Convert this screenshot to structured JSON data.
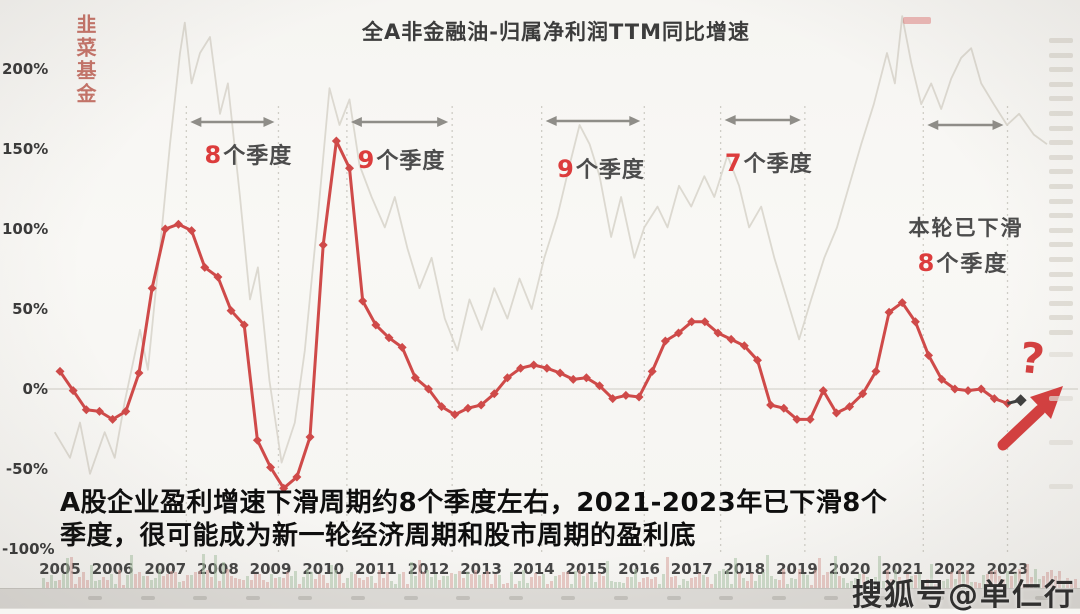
{
  "seal_text": "韭菜基金",
  "title": "全A非金融油-归属净利润TTM同比增速",
  "caption": {
    "line1": "A股企业盈利增速下滑周期约8个季度左右，2021-2023年已下滑8个",
    "line2": "季度，很可能成为新一轮经济周期和股市周期的盈利底"
  },
  "current_cycle_note": {
    "line1": "本轮已下滑",
    "num": "8",
    "rest": "个季度"
  },
  "question_mark": "?",
  "sohu_watermark": "搜狐号@单仁行",
  "colors": {
    "series_red": "#cf4a49",
    "series_gray": "#d8d5cc",
    "end_marker": "#3f3f3f",
    "annotation_red": "#dc3c3c",
    "arrow_gray": "#8f8d88",
    "bar_red": "#d8a49f",
    "bar_green": "#a9c2a6"
  },
  "chart_data": {
    "type": "line",
    "title": "全A非金融油-归属净利润TTM同比增速",
    "y_axis": {
      "unit": "%",
      "ticks": [
        200,
        150,
        100,
        50,
        0,
        -50,
        -100
      ],
      "range": [
        -110,
        240
      ],
      "grid": "0%-line only"
    },
    "x_axis": {
      "tick_years": [
        2005,
        2006,
        2007,
        2008,
        2009,
        2010,
        2011,
        2012,
        2013,
        2014,
        2015,
        2016,
        2017,
        2018,
        2019,
        2020,
        2021,
        2022,
        2023
      ]
    },
    "legend": "none",
    "series": [
      {
        "name": "归属净利润TTM同比增速(%)",
        "marker": "diamond",
        "color": "#cf4a49",
        "start_year": 2005.0,
        "interval_years": 0.25,
        "values": [
          11,
          -1,
          -13,
          -14,
          -19,
          -14,
          10,
          63,
          100,
          103,
          99,
          76,
          70,
          49,
          40,
          -32,
          -49,
          -62,
          -55,
          -30,
          90,
          155,
          138,
          55,
          40,
          32,
          26,
          7,
          0,
          -11,
          -16,
          -12,
          -10,
          -3,
          7,
          13,
          15,
          13,
          10,
          6,
          7,
          2,
          -6,
          -4,
          -5,
          11,
          30,
          35,
          42,
          42,
          35,
          31,
          27,
          18,
          -10,
          -12,
          -19,
          -19,
          -1,
          -15,
          -11,
          -3,
          11,
          48,
          54,
          42,
          21,
          6,
          0,
          -1,
          0,
          -6,
          -9
        ]
      },
      {
        "name": "背景淡灰曲线(指数走势)",
        "marker": "none",
        "color": "#d8d5cc",
        "points": [
          [
            2004.9,
            -27
          ],
          [
            2005.19,
            -43
          ],
          [
            2005.38,
            -21
          ],
          [
            2005.57,
            -53
          ],
          [
            2005.85,
            -27
          ],
          [
            2006.04,
            -43
          ],
          [
            2006.23,
            -8
          ],
          [
            2006.52,
            37
          ],
          [
            2006.67,
            12
          ],
          [
            2006.9,
            88
          ],
          [
            2007.09,
            153
          ],
          [
            2007.28,
            210
          ],
          [
            2007.37,
            229
          ],
          [
            2007.5,
            191
          ],
          [
            2007.66,
            210
          ],
          [
            2007.85,
            220
          ],
          [
            2008.04,
            172
          ],
          [
            2008.19,
            191
          ],
          [
            2008.42,
            120
          ],
          [
            2008.61,
            56
          ],
          [
            2008.76,
            76
          ],
          [
            2008.98,
            5
          ],
          [
            2009.21,
            -46
          ],
          [
            2009.46,
            -21
          ],
          [
            2009.65,
            24
          ],
          [
            2009.9,
            108
          ],
          [
            2010.12,
            188
          ],
          [
            2010.31,
            165
          ],
          [
            2010.5,
            181
          ],
          [
            2010.69,
            140
          ],
          [
            2010.92,
            120
          ],
          [
            2011.17,
            101
          ],
          [
            2011.36,
            120
          ],
          [
            2011.6,
            88
          ],
          [
            2011.83,
            63
          ],
          [
            2012.06,
            82
          ],
          [
            2012.31,
            44
          ],
          [
            2012.55,
            24
          ],
          [
            2012.78,
            56
          ],
          [
            2013.01,
            37
          ],
          [
            2013.25,
            63
          ],
          [
            2013.5,
            44
          ],
          [
            2013.73,
            69
          ],
          [
            2013.96,
            50
          ],
          [
            2014.2,
            82
          ],
          [
            2014.45,
            108
          ],
          [
            2014.68,
            140
          ],
          [
            2014.87,
            165
          ],
          [
            2015.06,
            153
          ],
          [
            2015.25,
            133
          ],
          [
            2015.47,
            95
          ],
          [
            2015.66,
            120
          ],
          [
            2015.91,
            82
          ],
          [
            2016.1,
            101
          ],
          [
            2016.35,
            114
          ],
          [
            2016.54,
            101
          ],
          [
            2016.76,
            127
          ],
          [
            2016.99,
            114
          ],
          [
            2017.24,
            133
          ],
          [
            2017.43,
            120
          ],
          [
            2017.68,
            146
          ],
          [
            2017.9,
            127
          ],
          [
            2018.09,
            101
          ],
          [
            2018.32,
            114
          ],
          [
            2018.57,
            82
          ],
          [
            2018.81,
            56
          ],
          [
            2019.04,
            31
          ],
          [
            2019.27,
            56
          ],
          [
            2019.52,
            82
          ],
          [
            2019.76,
            101
          ],
          [
            2019.99,
            127
          ],
          [
            2020.22,
            153
          ],
          [
            2020.46,
            178
          ],
          [
            2020.71,
            210
          ],
          [
            2020.86,
            191
          ],
          [
            2021.0,
            233
          ],
          [
            2021.17,
            204
          ],
          [
            2021.36,
            178
          ],
          [
            2021.55,
            191
          ],
          [
            2021.74,
            175
          ],
          [
            2021.93,
            194
          ],
          [
            2022.12,
            207
          ],
          [
            2022.31,
            213
          ],
          [
            2022.5,
            191
          ],
          [
            2022.74,
            178
          ],
          [
            2022.99,
            165
          ],
          [
            2023.22,
            172
          ],
          [
            2023.5,
            159
          ],
          [
            2023.75,
            153
          ]
        ]
      }
    ],
    "end_point": {
      "t": 2023.25,
      "v": -7,
      "color": "#3f3f3f"
    },
    "decline_spans": [
      {
        "num": "8",
        "label": "个季度",
        "from": 2007.4,
        "to": 2009.15
      },
      {
        "num": "9",
        "label": "个季度",
        "from": 2010.45,
        "to": 2012.45
      },
      {
        "num": "9",
        "label": "个季度",
        "from": 2014.15,
        "to": 2016.1
      },
      {
        "num": "7",
        "label": "个季度",
        "from": 2017.55,
        "to": 2019.15
      },
      {
        "num": "",
        "label": "",
        "from": 2021.4,
        "to": 2023.0
      }
    ]
  }
}
